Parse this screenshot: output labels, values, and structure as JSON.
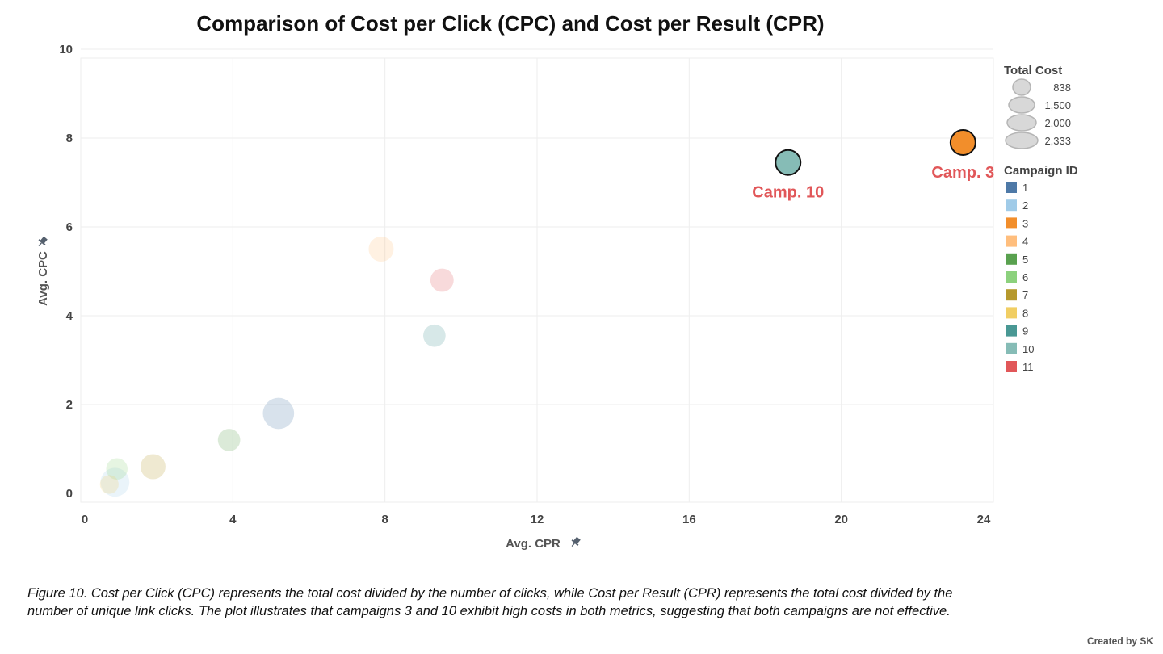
{
  "chart_data": {
    "type": "scatter",
    "title": "Comparison of Cost per Click (CPC) and Cost per Result (CPR)",
    "xlabel": "Avg. CPR",
    "ylabel": "Avg. CPC",
    "xlim": [
      0,
      24
    ],
    "ylim": [
      0,
      10
    ],
    "xticks": [
      "0",
      "4",
      "8",
      "12",
      "16",
      "20",
      "24"
    ],
    "yticks": [
      "0",
      "2",
      "4",
      "6",
      "8",
      "10"
    ],
    "grid": true,
    "points": [
      {
        "campaign": "1",
        "x": 5.2,
        "y": 1.8,
        "size": 2333,
        "highlight": false
      },
      {
        "campaign": "2",
        "x": 0.9,
        "y": 0.25,
        "size": 2000,
        "highlight": false
      },
      {
        "campaign": "3",
        "x": 23.2,
        "y": 7.9,
        "size": 1500,
        "highlight": true,
        "label": "Camp. 3"
      },
      {
        "campaign": "4",
        "x": 7.9,
        "y": 5.5,
        "size": 1500,
        "highlight": false
      },
      {
        "campaign": "5",
        "x": 3.9,
        "y": 1.2,
        "size": 1200,
        "highlight": false
      },
      {
        "campaign": "6",
        "x": 0.95,
        "y": 0.55,
        "size": 1100,
        "highlight": false
      },
      {
        "campaign": "7",
        "x": 1.9,
        "y": 0.6,
        "size": 1500,
        "highlight": false
      },
      {
        "campaign": "8",
        "x": 0.75,
        "y": 0.2,
        "size": 838,
        "highlight": false
      },
      {
        "campaign": "9",
        "x": 9.3,
        "y": 3.55,
        "size": 1200,
        "highlight": false
      },
      {
        "campaign": "10",
        "x": 18.6,
        "y": 7.45,
        "size": 1500,
        "highlight": true,
        "label": "Camp. 10"
      },
      {
        "campaign": "11",
        "x": 9.5,
        "y": 4.8,
        "size": 1300,
        "highlight": false
      }
    ],
    "legend": {
      "size_title": "Total Cost",
      "size_values": [
        "838",
        "1,500",
        "2,000",
        "2,333"
      ],
      "color_title": "Campaign ID",
      "color_items": [
        {
          "label": "1",
          "color": "#4e79a7"
        },
        {
          "label": "2",
          "color": "#a0cbe8"
        },
        {
          "label": "3",
          "color": "#f28e2b"
        },
        {
          "label": "4",
          "color": "#ffbe7d"
        },
        {
          "label": "5",
          "color": "#59a14f"
        },
        {
          "label": "6",
          "color": "#8cd17d"
        },
        {
          "label": "7",
          "color": "#b6992d"
        },
        {
          "label": "8",
          "color": "#f1ce63"
        },
        {
          "label": "9",
          "color": "#499894"
        },
        {
          "label": "10",
          "color": "#86bcb6"
        },
        {
          "label": "11",
          "color": "#e15759"
        }
      ],
      "placement": "right"
    }
  },
  "caption": "Figure 10. Cost per Click (CPC) represents the total cost divided by the number of clicks, while Cost per Result (CPR) represents the total cost divided by the number of unique link clicks. The plot illustrates that campaigns 3 and 10 exhibit high costs in both metrics, suggesting that both campaigns are not effective.",
  "credit": "Created by SK"
}
